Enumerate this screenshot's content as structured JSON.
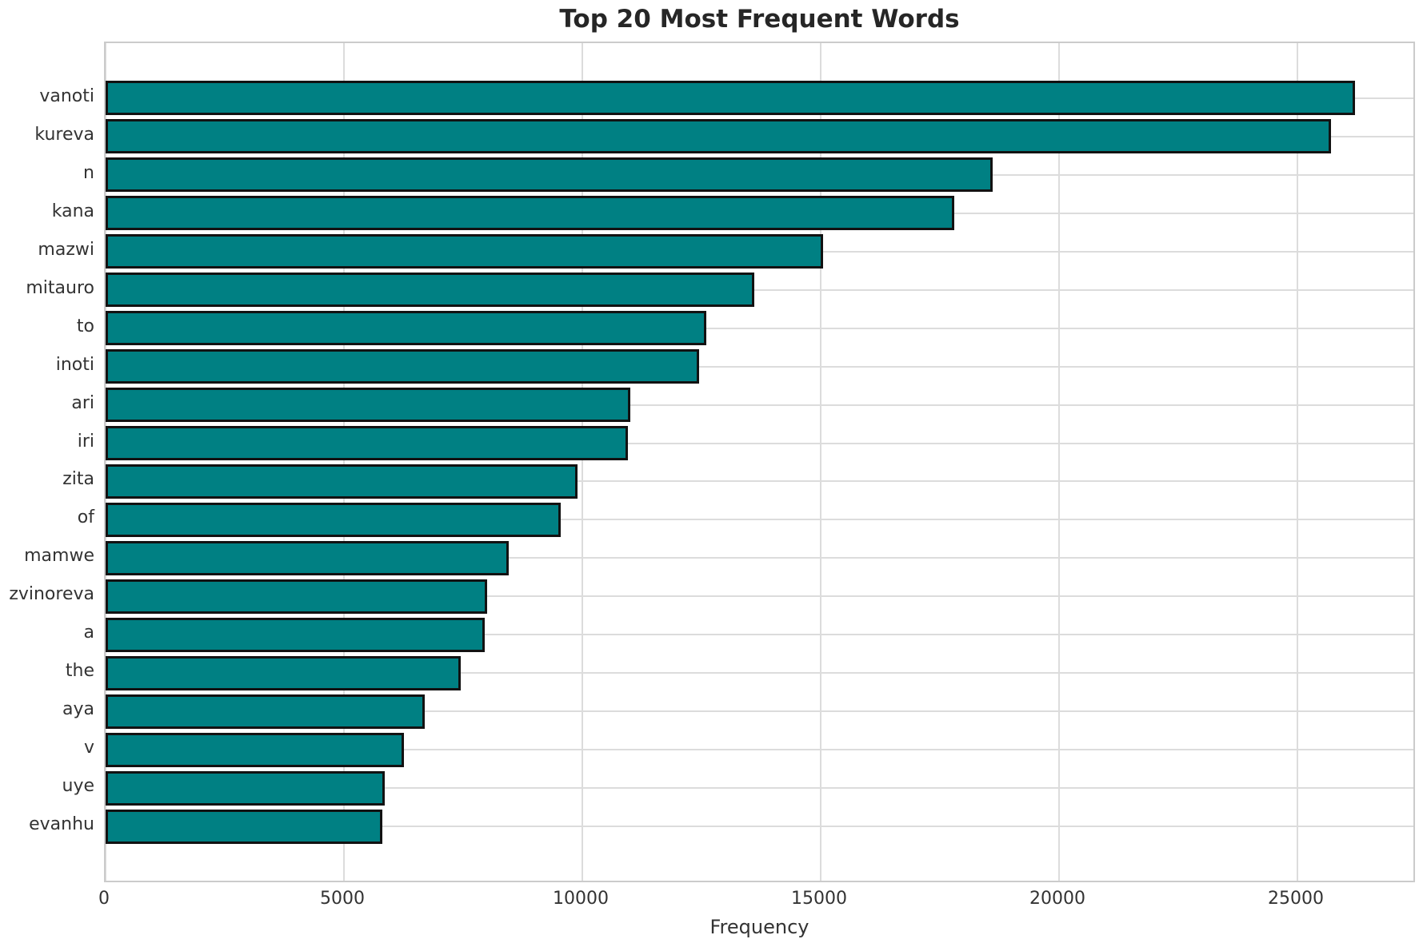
{
  "chart_data": {
    "type": "bar",
    "orientation": "horizontal",
    "title": "Top 20 Most Frequent Words",
    "xlabel": "Frequency",
    "ylabel": "",
    "categories": [
      "vanoti",
      "kureva",
      "n",
      "kana",
      "mazwi",
      "mitauro",
      "to",
      "inoti",
      "ari",
      "iri",
      "zita",
      "of",
      "mamwe",
      "zvinoreva",
      "a",
      "the",
      "aya",
      "v",
      "uye",
      "evanhu"
    ],
    "values": [
      26200,
      25700,
      18600,
      17800,
      15050,
      13600,
      12600,
      12450,
      11000,
      10950,
      9900,
      9550,
      8450,
      8000,
      7950,
      7450,
      6700,
      6250,
      5850,
      5800
    ],
    "xticks": [
      0,
      5000,
      10000,
      15000,
      20000,
      25000
    ],
    "xtick_labels": [
      "0",
      "5000",
      "10000",
      "15000",
      "20000",
      "25000"
    ],
    "xlim": [
      0,
      27500
    ],
    "grid": true,
    "legend_position": "none",
    "colors": {
      "bar_fill": "#008083",
      "bar_edge": "#121212",
      "figure_background": "#ffffff",
      "plot_background": "#ffffff",
      "grid_color": "#dcdcdc",
      "spine_color": "#cbcbcb",
      "tick_text": "#333333",
      "title_text": "#262626"
    }
  }
}
